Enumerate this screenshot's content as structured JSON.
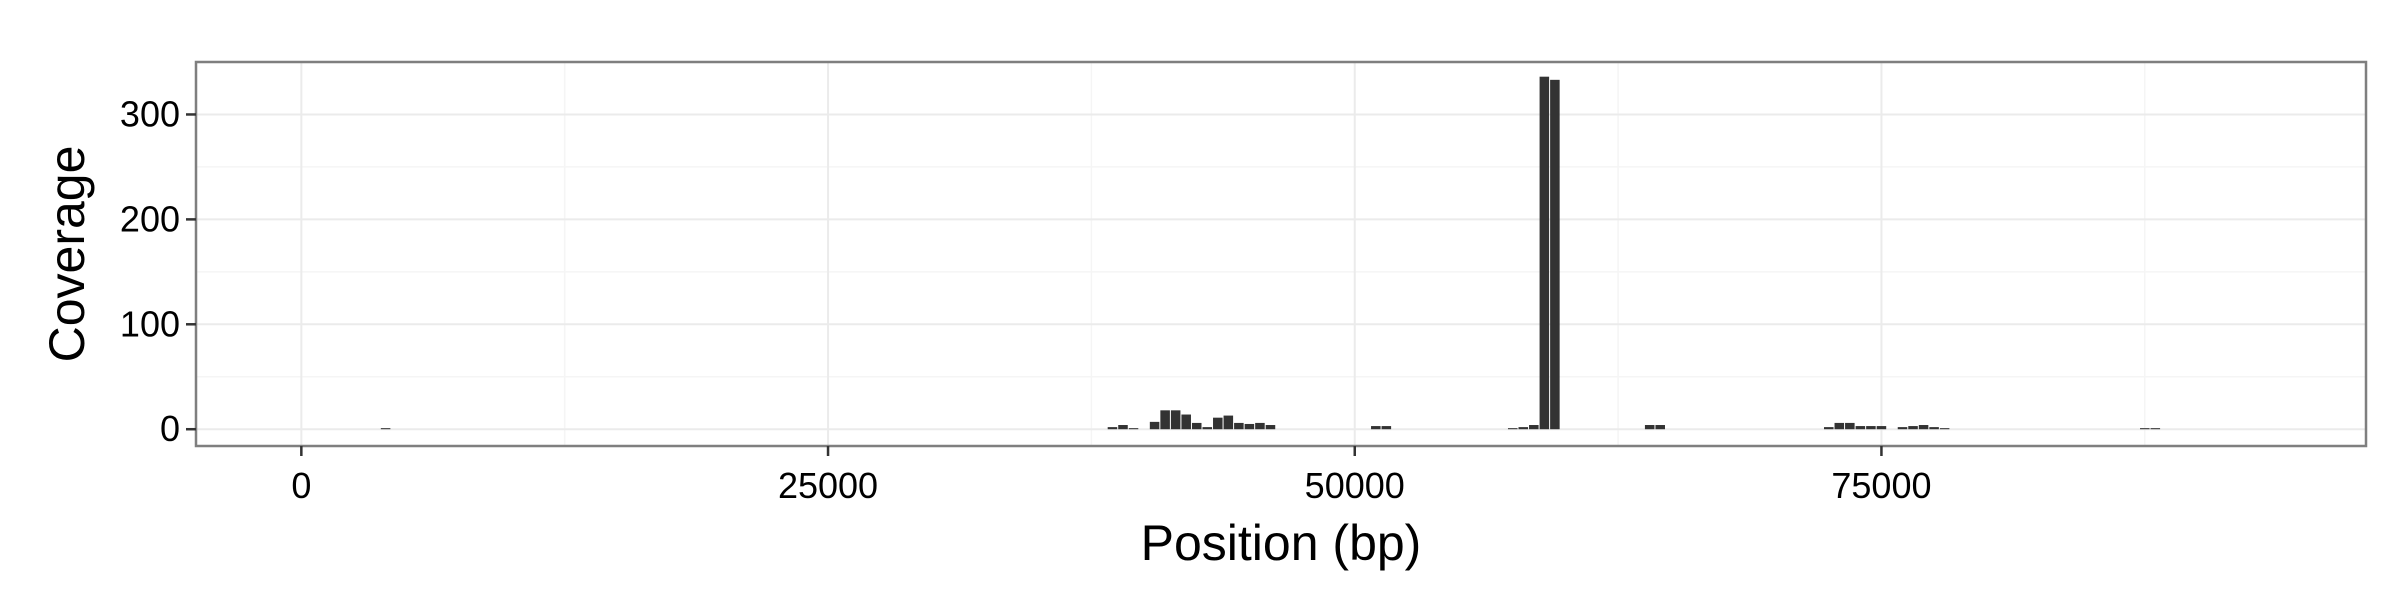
{
  "chart_data": {
    "type": "bar",
    "xlabel": "Position (bp)",
    "ylabel": "Coverage",
    "xlim": [
      -5000,
      98000
    ],
    "ylim": [
      -16,
      350
    ],
    "x_ticks": [
      0,
      25000,
      50000,
      75000
    ],
    "x_tick_labels": [
      "0",
      "25000",
      "50000",
      "75000"
    ],
    "y_ticks": [
      0,
      100,
      200,
      300
    ],
    "y_tick_labels": [
      "0",
      "100",
      "200",
      "300"
    ],
    "bin_width": 500,
    "grid": true,
    "legend": "none",
    "bar_color": "#333333",
    "panel_background": "#ffffff",
    "grid_color": "#ebebeb",
    "border_color": "#7f7f7f",
    "x": [
      4000,
      38500,
      39000,
      39500,
      40500,
      41000,
      41500,
      42000,
      42500,
      43000,
      43500,
      44000,
      44500,
      45000,
      45500,
      46000,
      51000,
      51500,
      57500,
      58000,
      58500,
      59000,
      59500,
      64000,
      64500,
      72500,
      73000,
      73500,
      74000,
      74500,
      75000,
      76000,
      76500,
      77000,
      77500,
      78000,
      87500,
      88000
    ],
    "values": [
      1,
      2,
      4,
      1,
      7,
      18,
      18,
      14,
      6,
      2,
      11,
      13,
      6,
      5,
      6,
      4,
      3,
      3,
      1,
      2,
      4,
      336,
      333,
      4,
      4,
      2,
      6,
      6,
      3,
      3,
      3,
      2,
      3,
      4,
      2,
      1,
      1,
      1
    ]
  }
}
